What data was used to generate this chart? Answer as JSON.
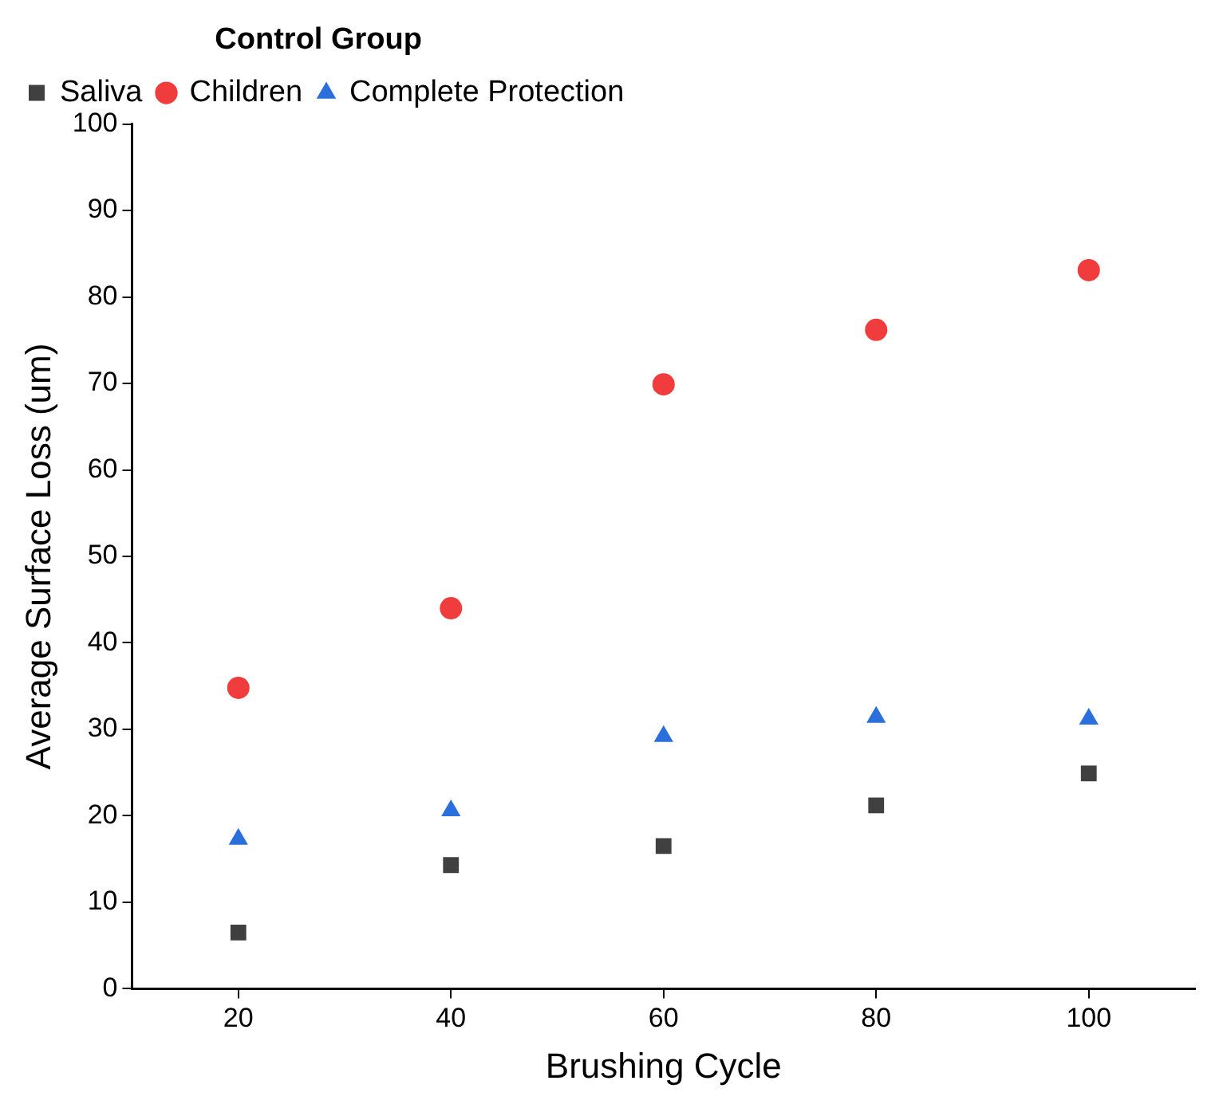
{
  "chart_data": {
    "type": "scatter",
    "xlabel": "Brushing Cycle",
    "ylabel": "Average Surface Loss (um)",
    "legend_title": "Control Group",
    "legend": "top left",
    "grid": false,
    "x": [
      20,
      40,
      60,
      80,
      100
    ],
    "series": [
      {
        "name": "Saliva",
        "color": "#404040",
        "marker": "square",
        "values": [
          6.5,
          14.3,
          16.5,
          21.2,
          24.9
        ]
      },
      {
        "name": "Children",
        "color": "#f03c3c",
        "marker": "circle",
        "values": [
          34.8,
          44.0,
          69.9,
          76.2,
          83.1
        ]
      },
      {
        "name": "Complete Protection",
        "color": "#2a6fdb",
        "marker": "triangle",
        "values": [
          17.3,
          20.6,
          29.2,
          31.4,
          31.2
        ]
      }
    ],
    "xlim": [
      10,
      110
    ],
    "xticks": [
      20,
      40,
      60,
      80,
      100
    ],
    "ylim": [
      0,
      100
    ],
    "yticks": [
      0,
      10,
      20,
      30,
      40,
      50,
      60,
      70,
      80,
      90,
      100
    ]
  }
}
